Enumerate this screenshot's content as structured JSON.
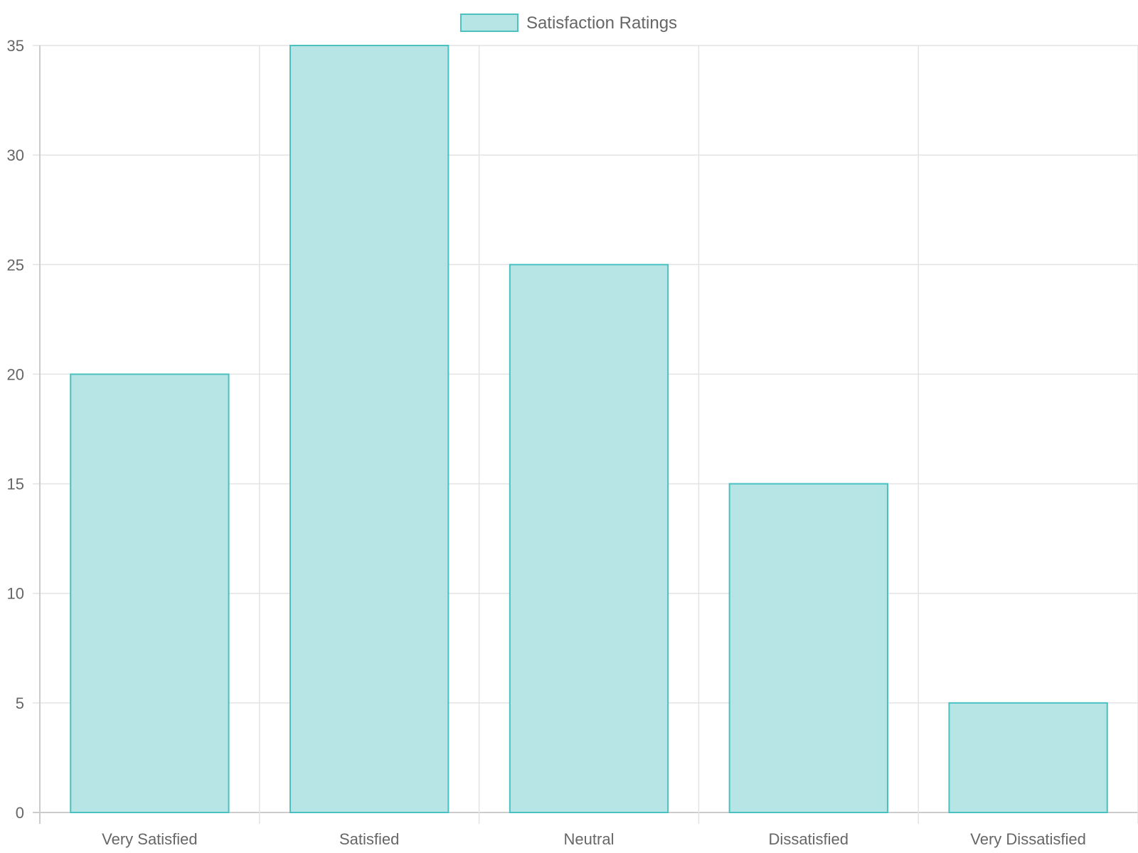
{
  "chart_data": {
    "type": "bar",
    "categories": [
      "Very Satisfied",
      "Satisfied",
      "Neutral",
      "Dissatisfied",
      "Very Dissatisfied"
    ],
    "series": [
      {
        "name": "Satisfaction Ratings",
        "values": [
          20,
          35,
          25,
          15,
          5
        ]
      }
    ],
    "y_ticks": [
      "0",
      "5",
      "10",
      "15",
      "20",
      "25",
      "30",
      "35"
    ],
    "ylim": [
      0,
      35
    ],
    "grid": true,
    "legend": "top",
    "colors": {
      "bar_fill": "#b7e5e5",
      "bar_border": "#4bc0c0",
      "grid": "#e3e3e3",
      "axis": "#cccccc",
      "text": "#666666"
    }
  }
}
